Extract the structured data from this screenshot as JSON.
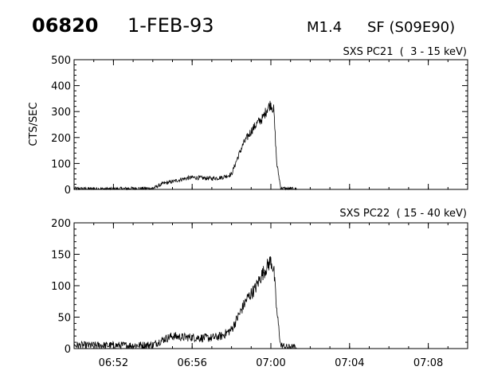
{
  "header": {
    "event_number": "06820",
    "date": "1-FEB-93",
    "goes_class": "M1.4",
    "optical_class": "SF (S09E90)"
  },
  "chart_data": [
    {
      "type": "line",
      "label": "SXS PC21  (  3 - 15 keV)",
      "ylabel": "CTS/SEC",
      "xlabel": "",
      "xlim": [
        "06:50",
        "07:10"
      ],
      "ylim": [
        0,
        500
      ],
      "y_ticks": [
        0,
        100,
        200,
        300,
        400,
        500
      ],
      "x_ticks": [
        "06:52",
        "06:56",
        "07:00",
        "07:04",
        "07:08"
      ],
      "x_minor_tick_minutes": 1,
      "noise": 6,
      "series": [
        {
          "x": [
            "06:50",
            "06:52",
            "06:53",
            "06:54",
            "06:54.5",
            "06:55",
            "06:55.5",
            "06:56",
            "06:56.5",
            "06:57",
            "06:57.5",
            "06:58",
            "06:58.3",
            "06:58.6",
            "06:59",
            "06:59.3",
            "06:59.6",
            "06:59.8",
            "07:00",
            "07:00.15",
            "07:00.3",
            "07:00.5",
            "07:00.8",
            "07:01.3"
          ],
          "values": [
            3,
            2,
            4,
            4,
            22,
            30,
            40,
            46,
            44,
            42,
            46,
            58,
            120,
            175,
            225,
            255,
            275,
            310,
            330,
            305,
            100,
            6,
            3,
            2
          ]
        }
      ]
    },
    {
      "type": "line",
      "label": "SXS PC22  ( 15 - 40 keV)",
      "ylabel": "",
      "xlabel": "",
      "xlim": [
        "06:50",
        "07:10"
      ],
      "ylim": [
        0,
        200
      ],
      "y_ticks": [
        0,
        50,
        100,
        150,
        200
      ],
      "x_ticks": [
        "06:52",
        "06:56",
        "07:00",
        "07:04",
        "07:08"
      ],
      "x_minor_tick_minutes": 1,
      "noise": 6,
      "series": [
        {
          "x": [
            "06:50",
            "06:52",
            "06:53",
            "06:54",
            "06:54.5",
            "06:55",
            "06:55.5",
            "06:56",
            "06:56.5",
            "06:57",
            "06:57.5",
            "06:58",
            "06:58.4",
            "06:58.8",
            "06:59.2",
            "06:59.5",
            "06:59.8",
            "07:00",
            "07:00.15",
            "07:00.3",
            "07:00.5",
            "07:00.8",
            "07:01.3"
          ],
          "values": [
            5,
            5,
            5,
            6,
            14,
            20,
            18,
            18,
            17,
            17,
            20,
            30,
            55,
            80,
            95,
            115,
            130,
            140,
            125,
            60,
            5,
            2,
            1
          ]
        }
      ]
    }
  ]
}
